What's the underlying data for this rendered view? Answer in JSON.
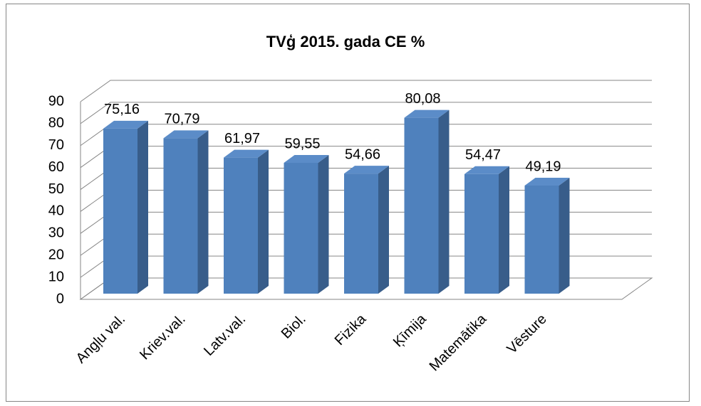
{
  "chart_data": {
    "type": "bar3d",
    "title": "TVģ 2015. gada CE %",
    "categories": [
      "Angļu val.",
      "Kriev.val.",
      "Latv.val.",
      "Biol.",
      "Fizika",
      "Ķīmija",
      "Matemātika",
      "Vēsture"
    ],
    "values": [
      75.16,
      70.79,
      61.97,
      59.55,
      54.66,
      80.08,
      54.47,
      49.19
    ],
    "value_labels": [
      "75,16",
      "70,79",
      "61,97",
      "59,55",
      "54,66",
      "80,08",
      "54,47",
      "49,19"
    ],
    "color": "#4f81bd",
    "ylim": [
      0,
      90
    ],
    "yticks": [
      0,
      10,
      20,
      30,
      40,
      50,
      60,
      70,
      80,
      90
    ],
    "grid": true
  }
}
